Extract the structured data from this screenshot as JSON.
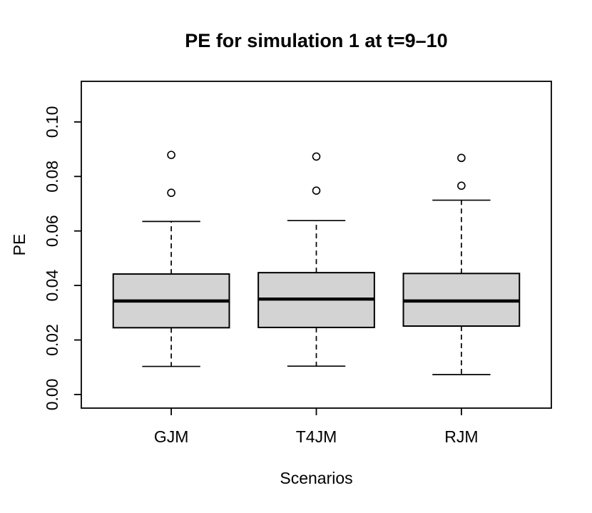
{
  "figure": {
    "background": "#ffffff"
  },
  "chart_data": {
    "type": "boxplot",
    "title": "PE for simulation 1 at t=9–10",
    "xlabel": "Scenarios",
    "ylabel": "PE",
    "categories": [
      "GJM",
      "T4JM",
      "RJM"
    ],
    "category_positions": [
      1,
      2,
      3
    ],
    "y_ticks": [
      0.0,
      0.02,
      0.04,
      0.06,
      0.08,
      0.1
    ],
    "y_tick_labels": [
      "0.00",
      "0.02",
      "0.04",
      "0.06",
      "0.08",
      "0.10"
    ],
    "ylim": [
      -0.005,
      0.1149
    ],
    "xlim": [
      0.38,
      3.62
    ],
    "grid": false,
    "legend": "none",
    "box_width": 0.8,
    "staple_width": 0.4,
    "box_fill": "#d3d3d3",
    "line_color": "#000000",
    "series": [
      {
        "name": "GJM",
        "x": 1,
        "whisker_low": 0.0103,
        "q1": 0.0245,
        "median": 0.0343,
        "q3": 0.0442,
        "whisker_high": 0.0635,
        "outliers": [
          0.074,
          0.0879
        ]
      },
      {
        "name": "T4JM",
        "x": 2,
        "whisker_low": 0.0104,
        "q1": 0.0246,
        "median": 0.035,
        "q3": 0.0447,
        "whisker_high": 0.0638,
        "outliers": [
          0.0748,
          0.0873
        ]
      },
      {
        "name": "RJM",
        "x": 3,
        "whisker_low": 0.0073,
        "q1": 0.0251,
        "median": 0.0343,
        "q3": 0.0444,
        "whisker_high": 0.0713,
        "outliers": [
          0.0766,
          0.0868
        ]
      }
    ]
  }
}
